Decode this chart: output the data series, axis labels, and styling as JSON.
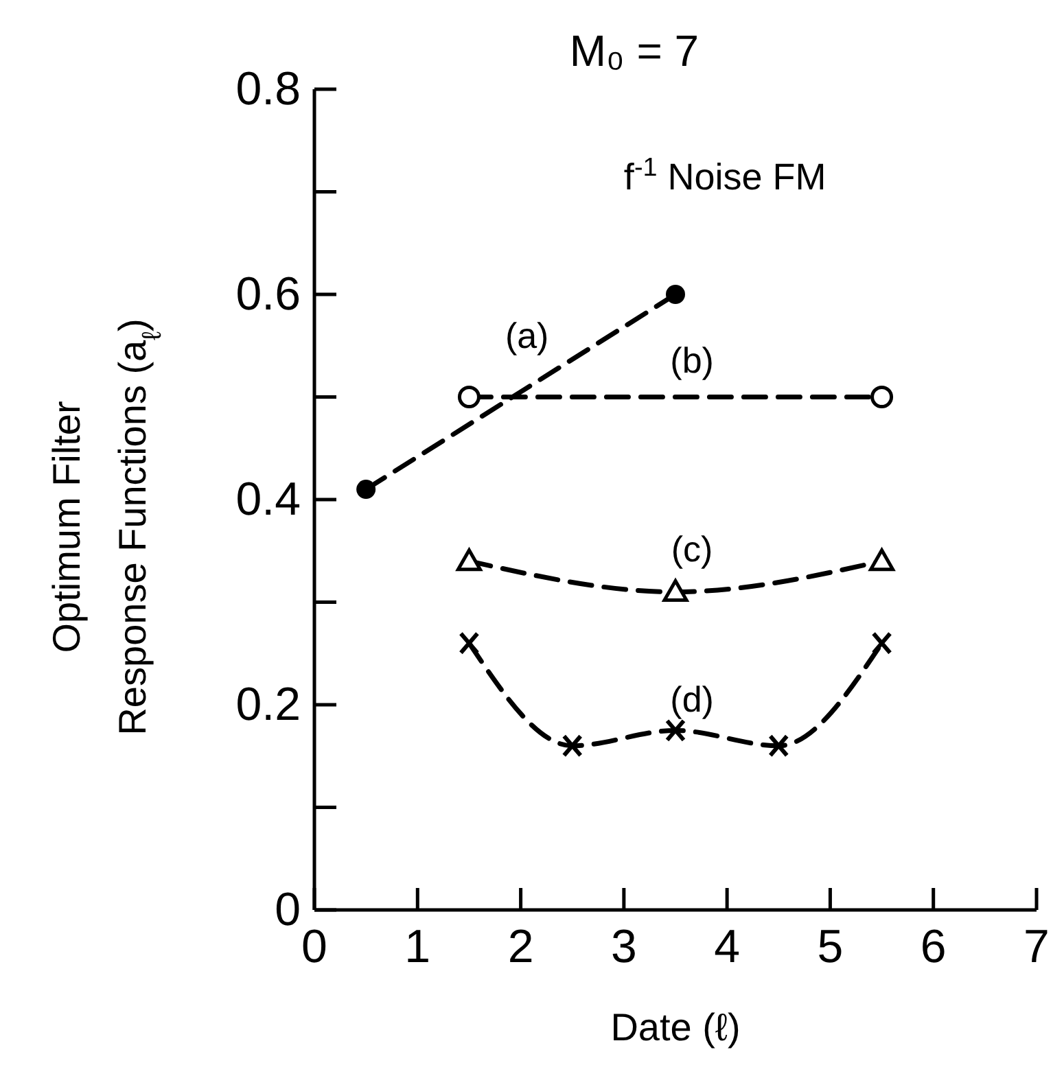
{
  "chart_data": {
    "type": "line",
    "title": "M₀ = 7",
    "xlabel": "Date (ℓ)",
    "ylabel": "Optimum Filter\nResponse Functions (a$_{ℓ}$)",
    "annotations": [
      "f$^{-1}$ Noise FM"
    ],
    "xlim": [
      0,
      7
    ],
    "xticks": [
      0,
      1,
      2,
      3,
      4,
      5,
      6,
      7
    ],
    "ylim": [
      0,
      0.8
    ],
    "yticks": [
      0,
      {
        "value": 0.1,
        "label": null
      },
      0.2,
      {
        "value": 0.3,
        "label": null
      },
      0.4,
      {
        "value": 0.5,
        "label": null
      },
      0.6,
      {
        "value": 0.7,
        "label": null
      },
      0.8
    ],
    "grid": false,
    "legend": false,
    "line_style": "dashed",
    "series": [
      {
        "name": "(a)",
        "color": "#000000",
        "marker": "circle",
        "x": [
          0.5,
          3.5
        ],
        "values": [
          0.41,
          0.6
        ]
      },
      {
        "name": "(b)",
        "color": "#000000",
        "marker": "open-circle",
        "x": [
          1.5,
          5.5
        ],
        "values": [
          0.5,
          0.5
        ]
      },
      {
        "name": "(c)",
        "color": "#000000",
        "marker": "triangle",
        "x": [
          1.5,
          3.5,
          5.5
        ],
        "values": [
          0.34,
          0.31,
          0.34
        ]
      },
      {
        "name": "(d)",
        "color": "#000000",
        "marker": "cross",
        "x": [
          1.5,
          2.5,
          3.5,
          4.5,
          5.5
        ],
        "values": [
          0.26,
          0.16,
          0.175,
          0.16,
          0.26
        ]
      }
    ]
  }
}
